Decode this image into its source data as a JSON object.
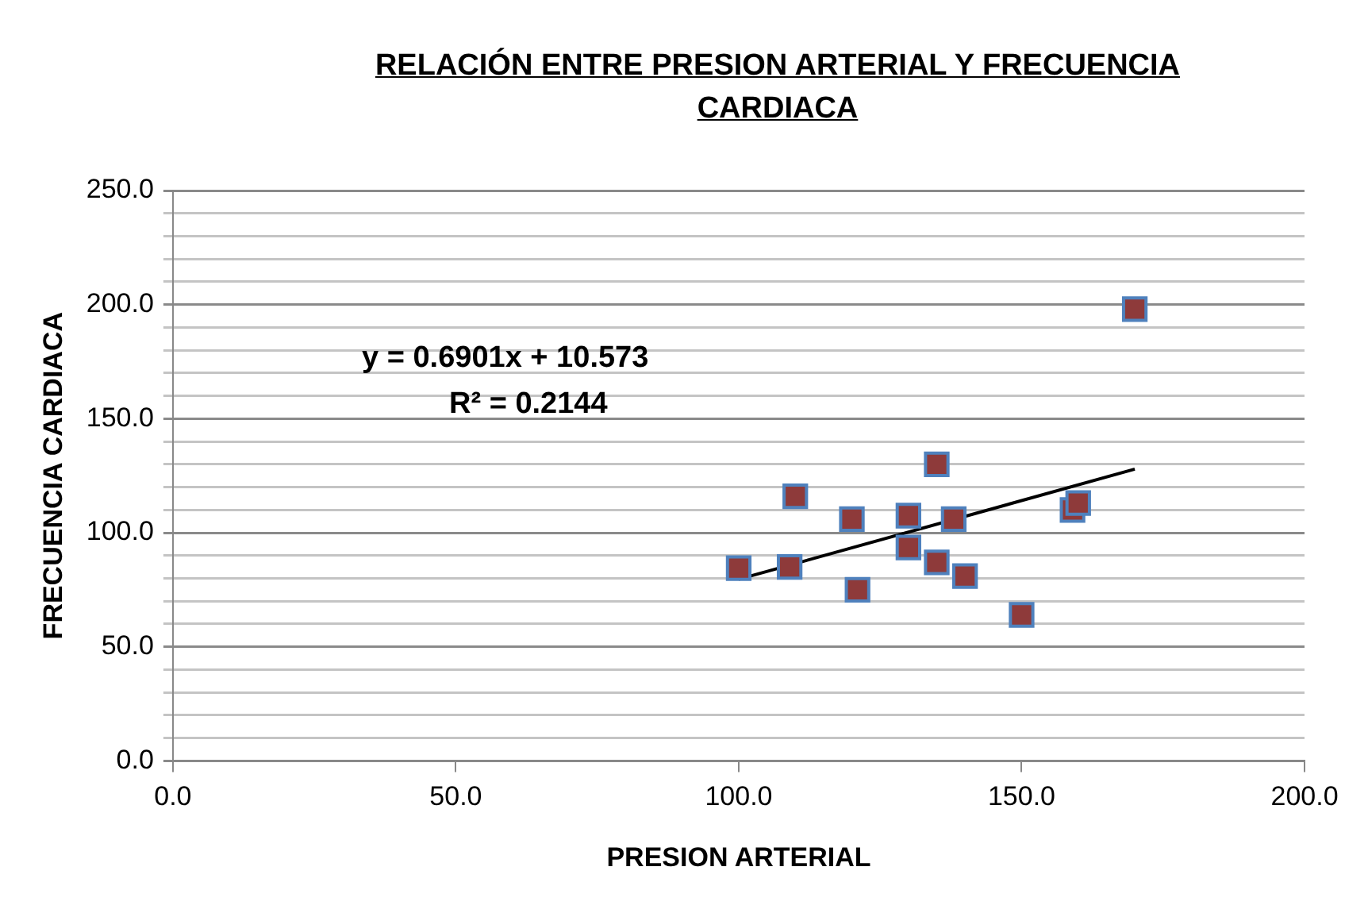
{
  "chart_data": {
    "type": "scatter",
    "title": "RELACIÓN ENTRE PRESION ARTERIAL Y FRECUENCIA CARDIACA",
    "xlabel": "PRESION ARTERIAL",
    "ylabel": "FRECUENCIA CARDIACA",
    "annotations": [
      "y = 0.6901x + 10.573",
      "R² = 0.2144"
    ],
    "series": [
      {
        "color": "#8e3a3a",
        "marker": "square",
        "x": [
          100,
          109,
          110,
          120,
          121,
          130,
          130,
          135,
          135,
          138,
          140,
          150,
          159,
          160,
          170
        ],
        "values": [
          84.5,
          85,
          116,
          106,
          75,
          107.5,
          93.5,
          130,
          87,
          106,
          81,
          64,
          110,
          113,
          198
        ]
      },
      {
        "type": "line",
        "color": "#000000",
        "marker": "none",
        "x": [
          100,
          170
        ],
        "values": [
          79.6,
          127.9
        ]
      }
    ],
    "xlim": [
      0,
      200
    ],
    "xticks": [
      {
        "value": 0,
        "label": "0.0"
      },
      {
        "value": 50,
        "label": "50.0"
      },
      {
        "value": 100,
        "label": "100.0"
      },
      {
        "value": 150,
        "label": "150.0"
      },
      {
        "value": 200,
        "label": "200.0"
      }
    ],
    "ylim": [
      0,
      250
    ],
    "yticks": [
      {
        "value": 0,
        "label": "0.0"
      },
      {
        "value": 10,
        "label": null
      },
      {
        "value": 20,
        "label": null
      },
      {
        "value": 30,
        "label": null
      },
      {
        "value": 40,
        "label": null
      },
      {
        "value": 50,
        "label": "50.0"
      },
      {
        "value": 60,
        "label": null
      },
      {
        "value": 70,
        "label": null
      },
      {
        "value": 80,
        "label": null
      },
      {
        "value": 90,
        "label": null
      },
      {
        "value": 100,
        "label": "100.0"
      },
      {
        "value": 110,
        "label": null
      },
      {
        "value": 120,
        "label": null
      },
      {
        "value": 130,
        "label": null
      },
      {
        "value": 140,
        "label": null
      },
      {
        "value": 150,
        "label": "150.0"
      },
      {
        "value": 160,
        "label": null
      },
      {
        "value": 170,
        "label": null
      },
      {
        "value": 180,
        "label": null
      },
      {
        "value": 190,
        "label": null
      },
      {
        "value": 200,
        "label": "200.0"
      },
      {
        "value": 210,
        "label": null
      },
      {
        "value": 220,
        "label": null
      },
      {
        "value": 230,
        "label": null
      },
      {
        "value": 240,
        "label": null
      },
      {
        "value": 250,
        "label": "250.0"
      }
    ],
    "grid": "y",
    "legend": false
  }
}
